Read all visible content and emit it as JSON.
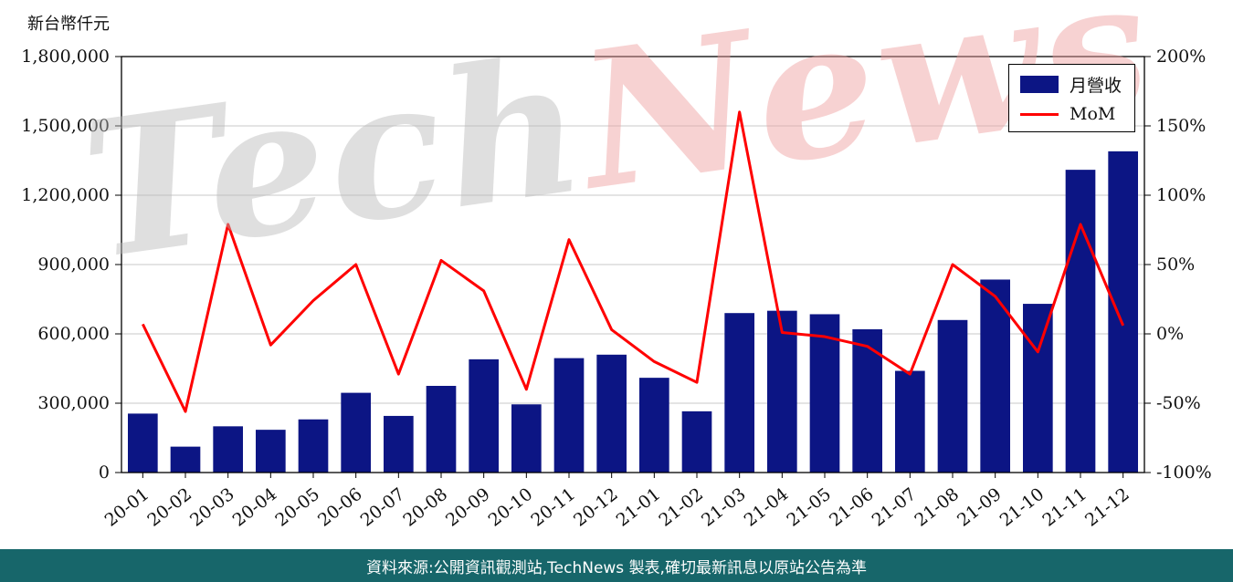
{
  "unit_label": "新台幣仟元",
  "legend": {
    "bar_label": "月營收",
    "line_label": "MoM"
  },
  "watermark": {
    "part1": "Tech",
    "part2": "News"
  },
  "footer": {
    "source_text": "資料來源:公開資訊觀測站,TechNews 製表,確切最新訊息以原站公告為準"
  },
  "colors": {
    "bar": "#0c1584",
    "line": "#ff0000",
    "grid": "#c9c9c9",
    "axis": "#000000",
    "footer_bg": "#17666a",
    "watermark_tech": "#b9b9b9",
    "watermark_news": "#ef9d9d"
  },
  "chart_data": {
    "type": "bar+line",
    "title": "",
    "categories": [
      "20-01",
      "20-02",
      "20-03",
      "20-04",
      "20-05",
      "20-06",
      "20-07",
      "20-08",
      "20-09",
      "20-10",
      "20-11",
      "20-12",
      "21-01",
      "21-02",
      "21-03",
      "21-04",
      "21-05",
      "21-06",
      "21-07",
      "21-08",
      "21-09",
      "21-10",
      "21-11",
      "21-12"
    ],
    "series": [
      {
        "name": "月營收",
        "type": "bar",
        "axis": "left",
        "unit": "新台幣仟元",
        "values": [
          255000,
          112000,
          200000,
          185000,
          230000,
          345000,
          245000,
          375000,
          490000,
          295000,
          495000,
          510000,
          410000,
          265000,
          690000,
          700000,
          685000,
          620000,
          440000,
          660000,
          835000,
          730000,
          1310000,
          1390000
        ]
      },
      {
        "name": "MoM",
        "type": "line",
        "axis": "right",
        "unit": "%",
        "values": [
          7,
          -56,
          79,
          -8,
          24,
          50,
          -29,
          53,
          31,
          -40,
          68,
          3,
          -20,
          -35,
          160,
          1,
          -2,
          -9,
          -29,
          50,
          27,
          -13,
          79,
          6
        ]
      }
    ],
    "left_axis": {
      "min": 0,
      "max": 1800000,
      "step": 300000,
      "tick_labels": [
        "0",
        "300,000",
        "600,000",
        "900,000",
        "1,200,000",
        "1,500,000",
        "1,800,000"
      ]
    },
    "right_axis": {
      "min": -100,
      "max": 200,
      "step": 50,
      "tick_labels": [
        "-100%",
        "-50%",
        "0%",
        "50%",
        "100%",
        "150%",
        "200%"
      ]
    },
    "grid": true,
    "legend_position": "top-right"
  }
}
